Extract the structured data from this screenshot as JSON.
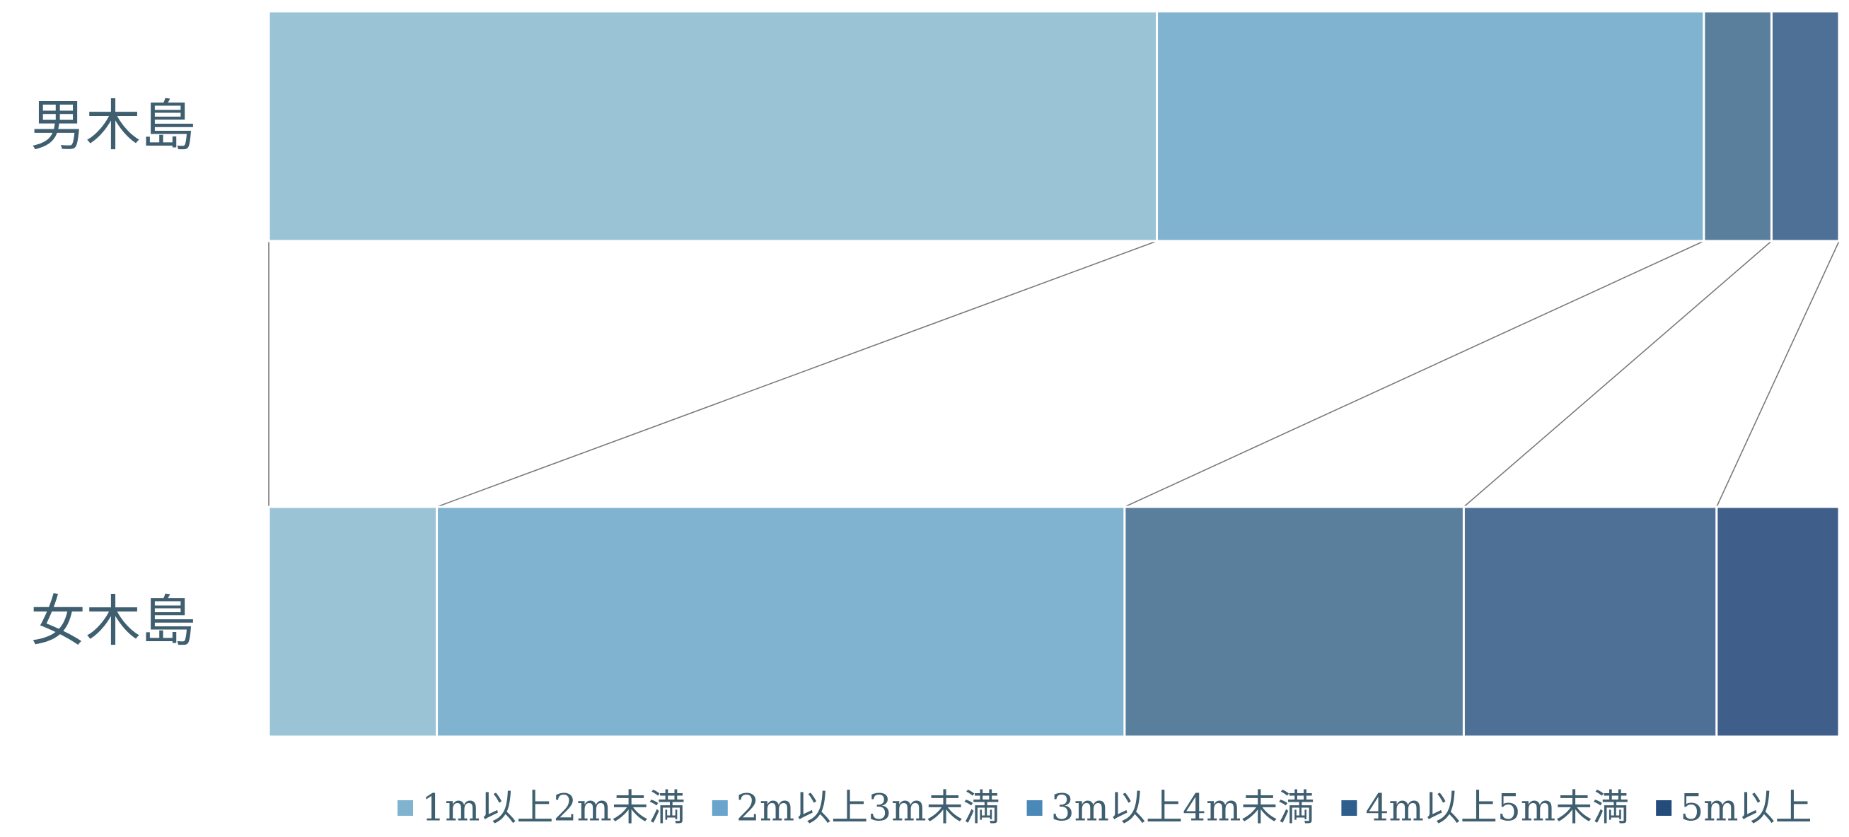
{
  "chart_data": {
    "type": "bar",
    "stacked": true,
    "orientation": "horizontal",
    "normalized": "percent",
    "categories": [
      "男木島",
      "女木島"
    ],
    "series": [
      {
        "name": "1m以上2m未満",
        "values": [
          56.5,
          10.7
        ],
        "color": "#9bc3d6"
      },
      {
        "name": "2m以上3m未満",
        "values": [
          34.8,
          43.8
        ],
        "color": "#7fb3d0"
      },
      {
        "name": "3m以上4m未満",
        "values": [
          4.3,
          21.6
        ],
        "color": "#5a7f9c"
      },
      {
        "name": "4m以上5m未満",
        "values": [
          4.3,
          16.1
        ],
        "color": "#4f7096"
      },
      {
        "name": "5m以上",
        "values": [
          0.0,
          7.8
        ],
        "color": "#3f5f8a"
      }
    ],
    "legend_colors": [
      "#7fb3d0",
      "#6aa4cc",
      "#4a88b8",
      "#2e5f8c",
      "#234b7c"
    ],
    "legend_position": "bottom",
    "connector_lines": true,
    "grid": false
  }
}
